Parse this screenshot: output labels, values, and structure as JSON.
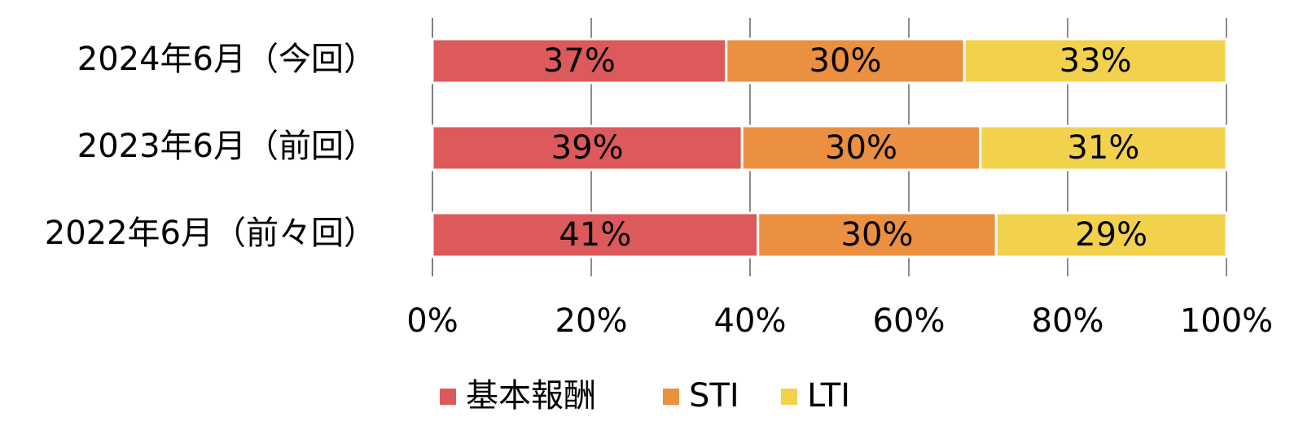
{
  "chart_data": {
    "type": "stacked-bar-horizontal",
    "categories": [
      "2024年6月（今回）",
      "2023年6月（前回）",
      "2022年6月（前々回）"
    ],
    "series": [
      {
        "name": "基本報酬",
        "color": "#dc5a5b",
        "values": [
          37,
          39,
          41
        ],
        "value_labels": [
          "37%",
          "39%",
          "41%"
        ]
      },
      {
        "name": "STI",
        "color": "#eb8f40",
        "values": [
          30,
          30,
          30
        ],
        "value_labels": [
          "30%",
          "30%",
          "30%"
        ]
      },
      {
        "name": "LTI",
        "color": "#f2d24c",
        "values": [
          33,
          31,
          29
        ],
        "value_labels": [
          "33%",
          "31%",
          "29%"
        ]
      }
    ],
    "xlim": [
      0,
      100
    ],
    "xticks": [
      {
        "value": 0,
        "label": "0%"
      },
      {
        "value": 20,
        "label": "20%"
      },
      {
        "value": 40,
        "label": "40%"
      },
      {
        "value": 60,
        "label": "60%"
      },
      {
        "value": 80,
        "label": "80%"
      },
      {
        "value": 100,
        "label": "100%"
      }
    ],
    "grid": true,
    "legend": "bottom"
  }
}
